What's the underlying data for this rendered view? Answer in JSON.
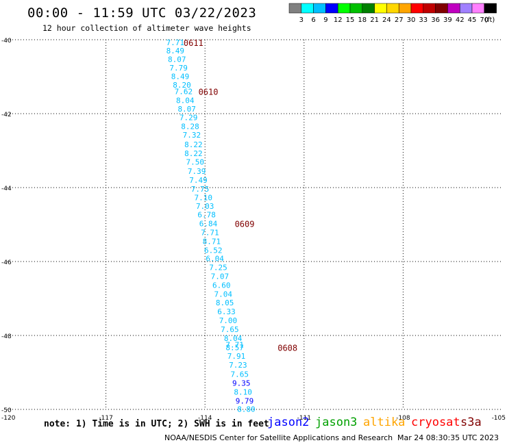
{
  "header": {
    "title": "00:00 - 11:59 UTC 03/22/2023",
    "subtitle": "12 hour collection of altimeter wave heights"
  },
  "colorbar": {
    "colors": [
      "#808080",
      "#00ffff",
      "#00bfff",
      "#0000ff",
      "#00ff00",
      "#00c000",
      "#008000",
      "#ffff00",
      "#ffd700",
      "#ffa500",
      "#ff0000",
      "#c00000",
      "#800000",
      "#c000c0",
      "#a080ff",
      "#ff80ff",
      "#000000"
    ],
    "labels": [
      "3",
      "6",
      "9",
      "12",
      "15",
      "18",
      "21",
      "24",
      "27",
      "30",
      "33",
      "36",
      "39",
      "42",
      "45",
      "70",
      "(ft)"
    ]
  },
  "footer": {
    "note": "note: 1) Time is in UTC; 2) SWH is in feet",
    "missions": [
      {
        "name": "jason2",
        "color": "#0000ff"
      },
      {
        "name": "jason3",
        "color": "#00a000"
      },
      {
        "name": "altika",
        "color": "#ffa500"
      },
      {
        "name": "cryosat",
        "color": "#ff0000"
      },
      {
        "name": "s3a",
        "color": "#800000"
      }
    ],
    "credit": "NOAA/NESDIS Center for Satellite Applications and Research",
    "timestamp": "Mar 24 08:30:35 UTC 2023"
  },
  "chart_data": {
    "type": "scatter",
    "xlim": [
      -120,
      -105
    ],
    "ylim": [
      -50,
      -40
    ],
    "x_ticks": [
      "-120",
      "-117",
      "-114",
      "-111",
      "-108",
      "-105"
    ],
    "y_ticks": [
      "-40",
      "-42",
      "-44",
      "-46",
      "-48",
      "-50"
    ],
    "x_tick_values": [
      -120,
      -117,
      -114,
      -111,
      -108,
      -105
    ],
    "y_tick_values": [
      -40,
      -42,
      -44,
      -46,
      -48,
      -50
    ],
    "grid": true,
    "color_low": "#00bfff",
    "color_high": "#0000ff",
    "time_color": "#800000",
    "points": [
      {
        "x": -114.9,
        "y": -40.07,
        "label": "7.71"
      },
      {
        "x": -114.9,
        "y": -40.3,
        "label": "8.49"
      },
      {
        "x": -114.85,
        "y": -40.53,
        "label": "8.07"
      },
      {
        "x": -114.8,
        "y": -40.76,
        "label": "7.79"
      },
      {
        "x": -114.75,
        "y": -40.99,
        "label": "8.49"
      },
      {
        "x": -114.7,
        "y": -41.22,
        "label": "8.20"
      },
      {
        "x": -114.65,
        "y": -41.4,
        "label": "7.62"
      },
      {
        "x": -114.6,
        "y": -41.64,
        "label": "8.04"
      },
      {
        "x": -114.55,
        "y": -41.87,
        "label": "8.07"
      },
      {
        "x": -114.5,
        "y": -42.1,
        "label": "7.29"
      },
      {
        "x": -114.45,
        "y": -42.34,
        "label": "8.28"
      },
      {
        "x": -114.4,
        "y": -42.57,
        "label": "7.32"
      },
      {
        "x": -114.35,
        "y": -42.83,
        "label": "8.22"
      },
      {
        "x": -114.35,
        "y": -43.07,
        "label": "8.22"
      },
      {
        "x": -114.3,
        "y": -43.31,
        "label": "7.50"
      },
      {
        "x": -114.25,
        "y": -43.56,
        "label": "7.39"
      },
      {
        "x": -114.2,
        "y": -43.8,
        "label": "7.49"
      },
      {
        "x": -114.15,
        "y": -44.04,
        "label": "7.75"
      },
      {
        "x": -114.05,
        "y": -44.27,
        "label": "7.10"
      },
      {
        "x": -114.0,
        "y": -44.5,
        "label": "7.03"
      },
      {
        "x": -113.95,
        "y": -44.73,
        "label": "6.78"
      },
      {
        "x": -113.9,
        "y": -44.97,
        "label": "6.84"
      },
      {
        "x": -113.85,
        "y": -45.21,
        "label": "7.71"
      },
      {
        "x": -113.8,
        "y": -45.45,
        "label": "8.71"
      },
      {
        "x": -113.75,
        "y": -45.69,
        "label": "6.52"
      },
      {
        "x": -113.7,
        "y": -45.92,
        "label": "6.04"
      },
      {
        "x": -113.6,
        "y": -46.16,
        "label": "7.25"
      },
      {
        "x": -113.55,
        "y": -46.4,
        "label": "7.07"
      },
      {
        "x": -113.5,
        "y": -46.64,
        "label": "6.60"
      },
      {
        "x": -113.45,
        "y": -46.88,
        "label": "7.04"
      },
      {
        "x": -113.4,
        "y": -47.11,
        "label": "8.05"
      },
      {
        "x": -113.35,
        "y": -47.35,
        "label": "6.33"
      },
      {
        "x": -113.3,
        "y": -47.59,
        "label": "7.00"
      },
      {
        "x": -113.25,
        "y": -47.83,
        "label": "7.65"
      },
      {
        "x": -113.15,
        "y": -48.07,
        "label": "8.04"
      },
      {
        "x": -113.1,
        "y": -48.25,
        "label": "7.71"
      },
      {
        "x": -113.1,
        "y": -48.32,
        "label": "8.57"
      },
      {
        "x": -113.05,
        "y": -48.56,
        "label": "7.91"
      },
      {
        "x": -113.0,
        "y": -48.8,
        "label": "7.23"
      },
      {
        "x": -112.95,
        "y": -49.05,
        "label": "7.65"
      },
      {
        "x": -112.9,
        "y": -49.29,
        "label": "9.35"
      },
      {
        "x": -112.85,
        "y": -49.53,
        "label": "8.10"
      },
      {
        "x": -112.8,
        "y": -49.77,
        "label": "9.79"
      },
      {
        "x": -112.75,
        "y": -49.99,
        "label": "8.80"
      }
    ],
    "time_labels": [
      {
        "x": -114.35,
        "y": -40.07,
        "label": "0611"
      },
      {
        "x": -113.9,
        "y": -41.4,
        "label": "0610"
      },
      {
        "x": -112.8,
        "y": -44.97,
        "label": "0609"
      },
      {
        "x": -111.5,
        "y": -48.32,
        "label": "0608"
      }
    ]
  }
}
